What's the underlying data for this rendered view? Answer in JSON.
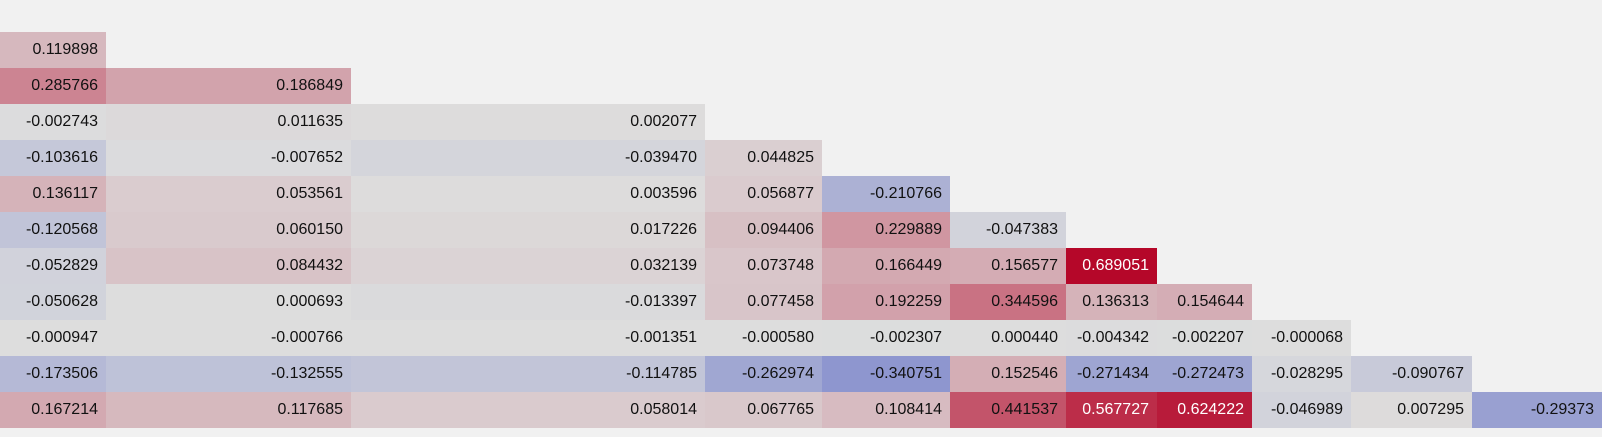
{
  "chart_data": {
    "type": "heatmap",
    "title": "",
    "lower_triangular": true,
    "color_scale": "coolwarm",
    "vmin": -0.7,
    "vmax": 0.7,
    "rows": [
      {
        "values": [
          0.119898
        ]
      },
      {
        "values": [
          0.285766,
          0.186849
        ]
      },
      {
        "values": [
          -0.002743,
          0.011635,
          0.002077
        ]
      },
      {
        "values": [
          -0.103616,
          -0.007652,
          -0.03947,
          0.044825
        ]
      },
      {
        "values": [
          0.136117,
          0.053561,
          0.003596,
          0.056877,
          -0.210766
        ]
      },
      {
        "values": [
          -0.120568,
          0.06015,
          0.017226,
          0.094406,
          0.229889,
          -0.047383
        ]
      },
      {
        "values": [
          -0.052829,
          0.084432,
          0.032139,
          0.073748,
          0.166449,
          0.156577,
          0.689051
        ]
      },
      {
        "values": [
          -0.050628,
          0.000693,
          -0.013397,
          0.077458,
          0.192259,
          0.344596,
          0.136313,
          0.154644
        ]
      },
      {
        "values": [
          -0.000947,
          -0.000766,
          -0.001351,
          -0.00058,
          -0.002307,
          0.00044,
          -0.004342,
          -0.002207,
          -6.8e-05
        ]
      },
      {
        "values": [
          -0.173506,
          -0.132555,
          -0.114785,
          -0.262974,
          -0.340751,
          0.152546,
          -0.271434,
          -0.272473,
          -0.028295,
          -0.090767
        ]
      },
      {
        "values": [
          0.167214,
          0.117685,
          0.058014,
          0.067765,
          0.108414,
          0.441537,
          0.567727,
          0.624222,
          -0.046989,
          0.007295,
          -0.29373
        ]
      }
    ],
    "cell_labels": [
      [
        "0.119898"
      ],
      [
        "0.285766",
        "0.186849"
      ],
      [
        "-0.002743",
        "0.011635",
        "0.002077"
      ],
      [
        "-0.103616",
        "-0.007652",
        "-0.039470",
        "0.044825"
      ],
      [
        "0.136117",
        "0.053561",
        "0.003596",
        "0.056877",
        "-0.210766"
      ],
      [
        "-0.120568",
        "0.060150",
        "0.017226",
        "0.094406",
        "0.229889",
        "-0.047383"
      ],
      [
        "-0.052829",
        "0.084432",
        "0.032139",
        "0.073748",
        "0.166449",
        "0.156577",
        "0.689051"
      ],
      [
        "-0.050628",
        "0.000693",
        "-0.013397",
        "0.077458",
        "0.192259",
        "0.344596",
        "0.136313",
        "0.154644"
      ],
      [
        "-0.000947",
        "-0.000766",
        "-0.001351",
        "-0.000580",
        "-0.002307",
        "0.000440",
        "-0.004342",
        "-0.002207",
        "-0.000068"
      ],
      [
        "-0.173506",
        "-0.132555",
        "-0.114785",
        "-0.262974",
        "-0.340751",
        "0.152546",
        "-0.271434",
        "-0.272473",
        "-0.028295",
        "-0.090767"
      ],
      [
        "0.167214",
        "0.117685",
        "0.058014",
        "0.067765",
        "0.108414",
        "0.441537",
        "0.567727",
        "0.624222",
        "-0.046989",
        "0.007295",
        "-0.29373"
      ]
    ]
  }
}
